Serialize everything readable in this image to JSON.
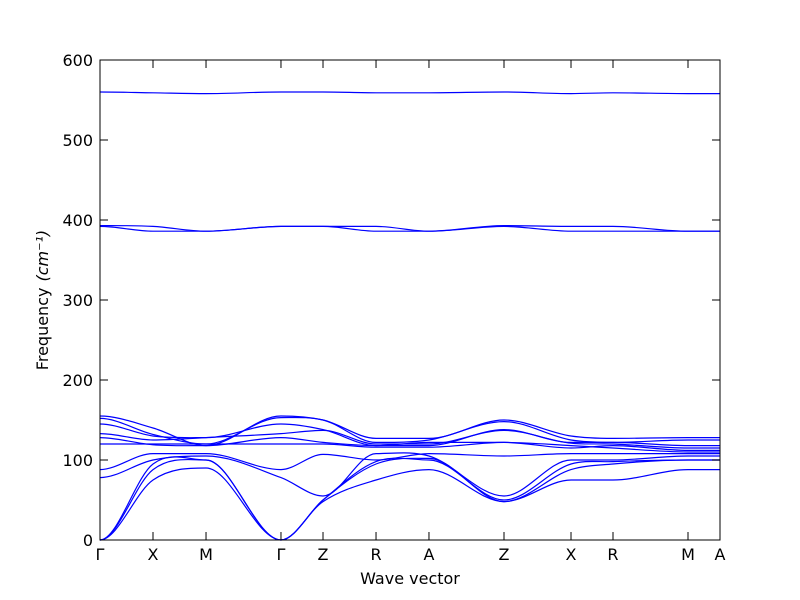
{
  "chart_data": {
    "type": "line",
    "title": "",
    "xlabel": "Wave vector",
    "ylabel": "Frequency",
    "ylabel_unit": "(cm⁻¹)",
    "ylim": [
      0,
      600
    ],
    "yticks": [
      0,
      100,
      200,
      300,
      400,
      500,
      600
    ],
    "grid": false,
    "legend": "none",
    "line_color": "#0000ff",
    "x_domain": [
      0,
      1
    ],
    "kpoints": [
      {
        "label": "Γ",
        "x": 0.0
      },
      {
        "label": "X",
        "x": 0.0855
      },
      {
        "label": "M",
        "x": 0.171
      },
      {
        "label": "Γ",
        "x": 0.2919
      },
      {
        "label": "Z",
        "x": 0.3597
      },
      {
        "label": "R",
        "x": 0.4452
      },
      {
        "label": "A",
        "x": 0.5306
      },
      {
        "label": "Z",
        "x": 0.6516
      },
      {
        "label": "X",
        "x": 0.7597
      },
      {
        "label": "R",
        "x": 0.8274
      },
      {
        "label": "M",
        "x": 0.9484
      },
      {
        "label": "A",
        "x": 1.0
      }
    ],
    "series": [
      {
        "x": [
          0,
          0.0855,
          0.171,
          0.2919,
          0.3597,
          0.4452,
          0.5306,
          0.6516,
          0.7597,
          0.8274,
          0.9484,
          1.0
        ],
        "values": [
          560,
          559,
          558,
          560,
          560,
          559,
          559,
          560,
          558,
          559,
          558,
          558
        ]
      },
      {
        "x": [
          0,
          0.0855,
          0.171,
          0.2919,
          0.3597,
          0.4452,
          0.5306,
          0.6516,
          0.7597,
          0.8274,
          0.9484,
          1.0
        ],
        "values": [
          393,
          392,
          386,
          392,
          392,
          392,
          386,
          393,
          392,
          392,
          386,
          386
        ]
      },
      {
        "x": [
          0,
          0.0855,
          0.171,
          0.2919,
          0.3597,
          0.4452,
          0.5306,
          0.6516,
          0.7597,
          0.8274,
          0.9484,
          1.0
        ],
        "values": [
          392,
          386,
          386,
          392,
          392,
          386,
          386,
          392,
          386,
          386,
          386,
          386
        ]
      },
      {
        "x": [
          0,
          0.0855,
          0.171,
          0.2919,
          0.3597,
          0.4452,
          0.5306,
          0.6516,
          0.7597,
          0.8274,
          0.9484,
          1.0
        ],
        "values": [
          155,
          140,
          118,
          155,
          150,
          127,
          127,
          150,
          130,
          127,
          128,
          128
        ]
      },
      {
        "x": [
          0,
          0.0855,
          0.171,
          0.2919,
          0.3597,
          0.4452,
          0.5306,
          0.6516,
          0.7597,
          0.8274,
          0.9484,
          1.0
        ],
        "values": [
          152,
          132,
          120,
          153,
          150,
          122,
          125,
          148,
          125,
          122,
          125,
          125
        ]
      },
      {
        "x": [
          0,
          0.0855,
          0.171,
          0.2919,
          0.3597,
          0.4452,
          0.5306,
          0.6516,
          0.7597,
          0.8274,
          0.9484,
          1.0
        ],
        "values": [
          145,
          130,
          128,
          145,
          138,
          118,
          118,
          138,
          122,
          122,
          118,
          118
        ]
      },
      {
        "x": [
          0,
          0.0855,
          0.171,
          0.2919,
          0.3597,
          0.4452,
          0.5306,
          0.6516,
          0.7597,
          0.8274,
          0.9484,
          1.0
        ],
        "values": [
          133,
          125,
          128,
          133,
          137,
          120,
          120,
          137,
          121,
          120,
          115,
          115
        ]
      },
      {
        "x": [
          0,
          0.0855,
          0.171,
          0.2919,
          0.3597,
          0.4452,
          0.5306,
          0.6516,
          0.7597,
          0.8274,
          0.9484,
          1.0
        ],
        "values": [
          128,
          119,
          118,
          128,
          122,
          118,
          122,
          122,
          115,
          118,
          112,
          112
        ]
      },
      {
        "x": [
          0,
          0.0855,
          0.171,
          0.2919,
          0.3597,
          0.4452,
          0.5306,
          0.6516,
          0.7597,
          0.8274,
          0.9484,
          1.0
        ],
        "values": [
          120,
          120,
          120,
          120,
          120,
          116,
          116,
          122,
          118,
          115,
          110,
          110
        ]
      },
      {
        "x": [
          0,
          0.0855,
          0.171,
          0.2919,
          0.3597,
          0.4452,
          0.5306,
          0.6516,
          0.7597,
          0.8274,
          0.9484,
          1.0
        ],
        "values": [
          88,
          108,
          108,
          88,
          107,
          100,
          108,
          105,
          108,
          108,
          108,
          108
        ]
      },
      {
        "x": [
          0,
          0.0855,
          0.171,
          0.2919,
          0.3597,
          0.4452,
          0.5306,
          0.6516,
          0.7597,
          0.8274,
          0.9484,
          1.0
        ],
        "values": [
          78,
          100,
          105,
          78,
          55,
          108,
          105,
          55,
          100,
          100,
          105,
          105
        ]
      },
      {
        "x": [
          0,
          0.0855,
          0.171,
          0.2919,
          0.3597,
          0.4452,
          0.5306,
          0.6516,
          0.7597,
          0.8274,
          0.9484,
          1.0
        ],
        "values": [
          0,
          95,
          100,
          0,
          50,
          98,
          100,
          50,
          95,
          98,
          100,
          100
        ]
      },
      {
        "x": [
          0,
          0.0855,
          0.171,
          0.2919,
          0.3597,
          0.4452,
          0.5306,
          0.6516,
          0.7597,
          0.8274,
          0.9484,
          1.0
        ],
        "values": [
          0,
          88,
          100,
          0,
          50,
          95,
          102,
          48,
          88,
          95,
          100,
          100
        ]
      },
      {
        "x": [
          0,
          0.0855,
          0.171,
          0.2919,
          0.3597,
          0.4452,
          0.5306,
          0.6516,
          0.7597,
          0.8274,
          0.9484,
          1.0
        ],
        "values": [
          0,
          75,
          90,
          0,
          48,
          75,
          88,
          48,
          75,
          75,
          88,
          88
        ]
      }
    ]
  }
}
